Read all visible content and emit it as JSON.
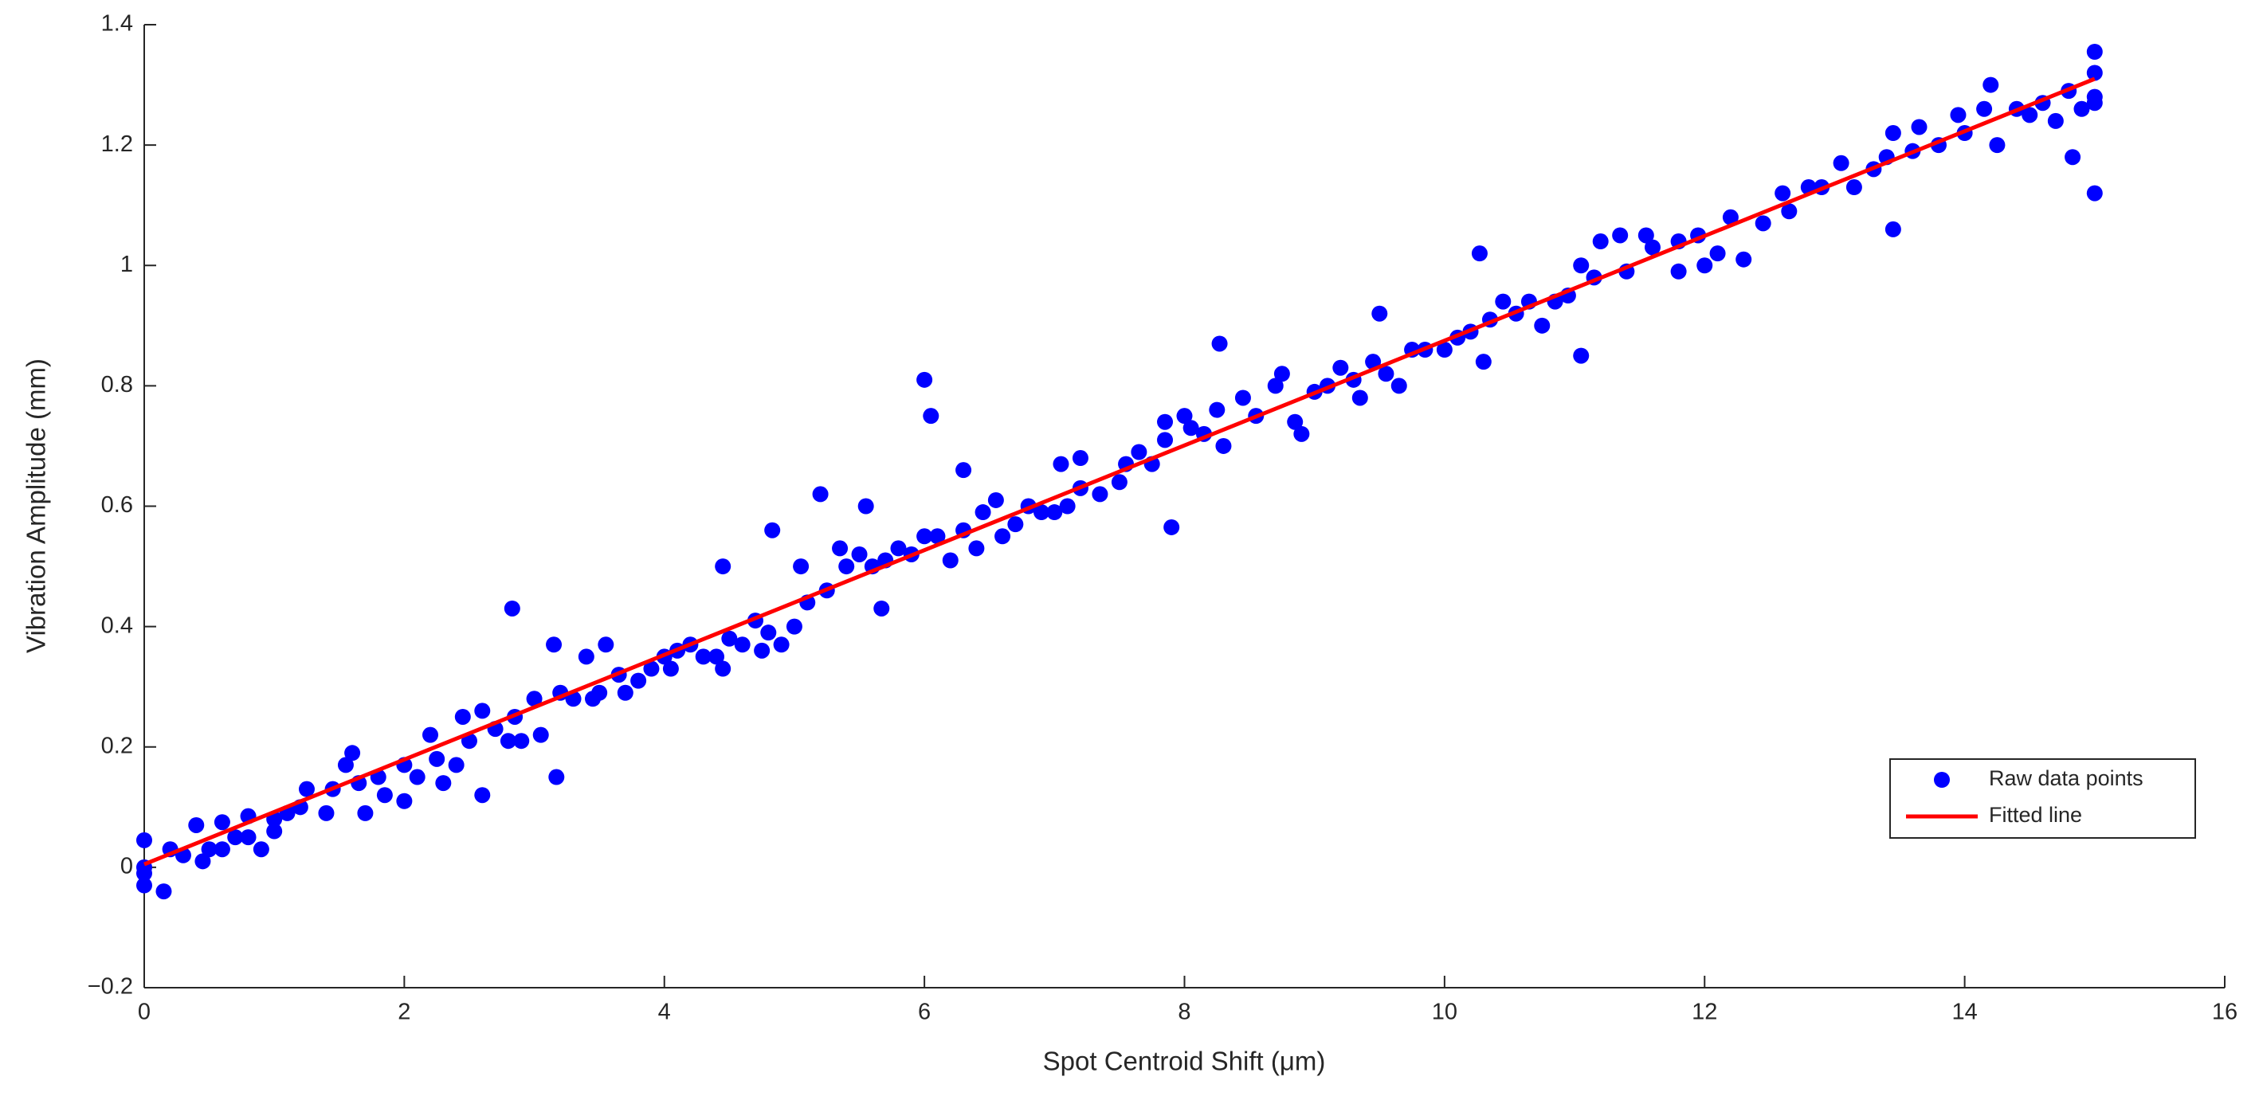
{
  "chart_data": {
    "type": "scatter",
    "xlabel": "Spot Centroid Shift (μm)",
    "ylabel": "Vibration Amplitude (mm)",
    "xlim": [
      0,
      16
    ],
    "xticks": [
      0,
      2,
      4,
      6,
      8,
      10,
      12,
      14,
      16
    ],
    "ylim": [
      -0.2,
      1.4
    ],
    "yticks": [
      {
        "value": -0.2,
        "label": "−0.2"
      },
      0,
      0.2,
      0.4,
      0.6,
      0.8,
      1,
      1.2,
      1.4
    ],
    "legend": "lower right",
    "series": [
      {
        "name": "Raw data points",
        "type": "scatter",
        "color": "#0000ff",
        "x": [
          0,
          0,
          0,
          0,
          0.15,
          0.2,
          0.3,
          0.4,
          0.45,
          0.5,
          0.6,
          0.6,
          0.7,
          0.8,
          0.8,
          0.9,
          1.0,
          1.0,
          1.1,
          1.2,
          1.25,
          1.4,
          1.45,
          1.55,
          1.6,
          1.65,
          1.7,
          1.8,
          1.85,
          2.0,
          2.0,
          2.1,
          2.2,
          2.25,
          2.3,
          2.4,
          2.45,
          2.5,
          2.6,
          2.6,
          2.7,
          2.8,
          2.83,
          2.85,
          2.9,
          3.0,
          3.05,
          3.17,
          3.15,
          3.2,
          3.3,
          3.4,
          3.45,
          3.5,
          3.55,
          3.65,
          3.7,
          3.8,
          3.9,
          4.0,
          4.05,
          4.1,
          4.2,
          4.3,
          4.4,
          4.45,
          4.45,
          4.5,
          4.6,
          4.7,
          4.75,
          4.8,
          4.83,
          4.9,
          5.0,
          5.05,
          5.1,
          5.2,
          5.25,
          5.35,
          5.4,
          5.5,
          5.55,
          5.6,
          5.67,
          5.7,
          5.8,
          5.9,
          6.0,
          6.0,
          6.05,
          6.1,
          6.2,
          6.3,
          6.3,
          6.4,
          6.45,
          6.55,
          6.6,
          6.7,
          6.8,
          6.9,
          7.0,
          7.05,
          7.1,
          7.2,
          7.2,
          7.35,
          7.5,
          7.55,
          7.65,
          7.75,
          7.85,
          7.85,
          7.9,
          8.0,
          8.05,
          8.15,
          8.25,
          8.27,
          8.3,
          8.45,
          8.55,
          8.7,
          8.75,
          8.85,
          8.9,
          9.0,
          9.1,
          9.2,
          9.3,
          9.35,
          9.45,
          9.5,
          9.55,
          9.65,
          9.75,
          9.85,
          10.0,
          10.1,
          10.2,
          10.27,
          10.3,
          10.35,
          10.45,
          10.55,
          10.65,
          10.75,
          10.85,
          10.95,
          11.05,
          11.05,
          11.15,
          11.2,
          11.35,
          11.4,
          11.55,
          11.6,
          11.8,
          11.8,
          11.95,
          12.0,
          12.1,
          12.2,
          12.3,
          12.45,
          12.6,
          12.65,
          12.8,
          12.9,
          13.05,
          13.15,
          13.3,
          13.4,
          13.45,
          13.45,
          13.6,
          13.65,
          13.8,
          13.95,
          14.0,
          14.15,
          14.2,
          14.25,
          14.4,
          14.5,
          14.6,
          14.7,
          14.8,
          14.83,
          14.9,
          15.0,
          15.0,
          15.0,
          15.0,
          15.0
        ],
        "values": [
          0,
          -0.01,
          -0.03,
          0.045,
          -0.04,
          0.03,
          0.02,
          0.07,
          0.01,
          0.03,
          0.075,
          0.03,
          0.05,
          0.085,
          0.05,
          0.03,
          0.06,
          0.08,
          0.09,
          0.1,
          0.13,
          0.09,
          0.13,
          0.17,
          0.19,
          0.14,
          0.09,
          0.15,
          0.12,
          0.11,
          0.17,
          0.15,
          0.22,
          0.18,
          0.14,
          0.17,
          0.25,
          0.21,
          0.26,
          0.12,
          0.23,
          0.21,
          0.43,
          0.25,
          0.21,
          0.28,
          0.22,
          0.15,
          0.37,
          0.29,
          0.28,
          0.35,
          0.28,
          0.29,
          0.37,
          0.32,
          0.29,
          0.31,
          0.33,
          0.35,
          0.33,
          0.36,
          0.37,
          0.35,
          0.35,
          0.5,
          0.33,
          0.38,
          0.37,
          0.41,
          0.36,
          0.39,
          0.56,
          0.37,
          0.4,
          0.5,
          0.44,
          0.62,
          0.46,
          0.53,
          0.5,
          0.52,
          0.6,
          0.5,
          0.43,
          0.51,
          0.53,
          0.52,
          0.81,
          0.55,
          0.75,
          0.55,
          0.51,
          0.66,
          0.56,
          0.53,
          0.59,
          0.61,
          0.55,
          0.57,
          0.6,
          0.59,
          0.59,
          0.67,
          0.6,
          0.68,
          0.63,
          0.62,
          0.64,
          0.67,
          0.69,
          0.67,
          0.74,
          0.71,
          0.565,
          0.75,
          0.73,
          0.72,
          0.76,
          0.87,
          0.7,
          0.78,
          0.75,
          0.8,
          0.82,
          0.74,
          0.72,
          0.79,
          0.8,
          0.83,
          0.81,
          0.78,
          0.84,
          0.92,
          0.82,
          0.8,
          0.86,
          0.86,
          0.86,
          0.88,
          0.89,
          1.02,
          0.84,
          0.91,
          0.94,
          0.92,
          0.94,
          0.9,
          0.94,
          0.95,
          1.0,
          0.85,
          0.98,
          1.04,
          1.05,
          0.99,
          1.05,
          1.03,
          1.04,
          0.99,
          1.05,
          1.0,
          1.02,
          1.08,
          1.01,
          1.07,
          1.12,
          1.09,
          1.13,
          1.13,
          1.17,
          1.13,
          1.16,
          1.18,
          1.06,
          1.22,
          1.19,
          1.23,
          1.2,
          1.25,
          1.22,
          1.26,
          1.3,
          1.2,
          1.26,
          1.25,
          1.27,
          1.24,
          1.29,
          1.18,
          1.26,
          1.355,
          1.32,
          1.28,
          1.27,
          1.12
        ]
      },
      {
        "name": "Fitted line",
        "type": "line",
        "color": "#ff0000",
        "x": [
          0,
          15
        ],
        "values": [
          0.005,
          1.31
        ]
      }
    ]
  }
}
